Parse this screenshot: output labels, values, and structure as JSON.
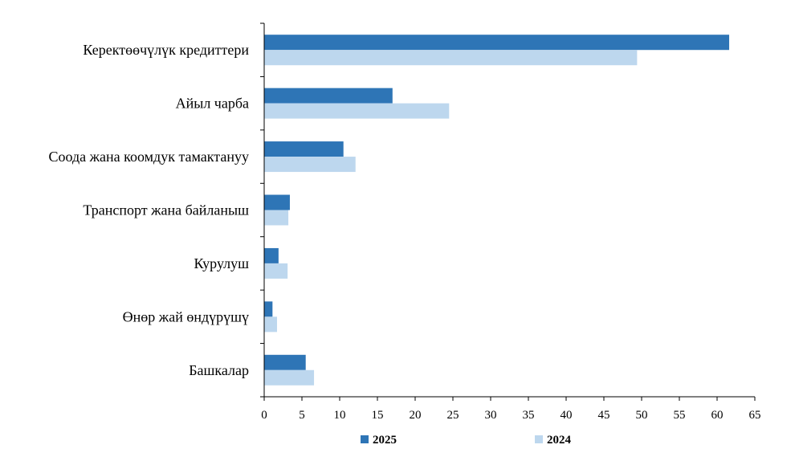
{
  "chart_data": {
    "type": "bar",
    "orientation": "horizontal",
    "categories": [
      "Керектөөчүлүк кредиттери",
      "Айыл чарба",
      "Соода жана коомдук тамактануу",
      "Транспорт жана байланыш",
      "Курулуш",
      "Өнөр жай өндүрүшү",
      "Башкалар"
    ],
    "series": [
      {
        "name": "2025",
        "color": "#2e75b6",
        "values": [
          61.6,
          17.0,
          10.5,
          3.4,
          1.9,
          1.1,
          5.5
        ]
      },
      {
        "name": "2024",
        "color": "#bdd7ee",
        "values": [
          49.4,
          24.5,
          12.1,
          3.2,
          3.1,
          1.7,
          6.6
        ]
      }
    ],
    "xlim": [
      0,
      65
    ],
    "xticks": [
      0,
      5,
      10,
      15,
      20,
      25,
      30,
      35,
      40,
      45,
      50,
      55,
      60,
      65
    ],
    "xtick_labels": [
      "0",
      "5",
      "10",
      "15",
      "20",
      "25",
      "30",
      "35",
      "40",
      "45",
      "50",
      "55",
      "60",
      "65"
    ],
    "title": "",
    "xlabel": "",
    "ylabel": "",
    "grid": false,
    "legend_position": "bottom"
  }
}
